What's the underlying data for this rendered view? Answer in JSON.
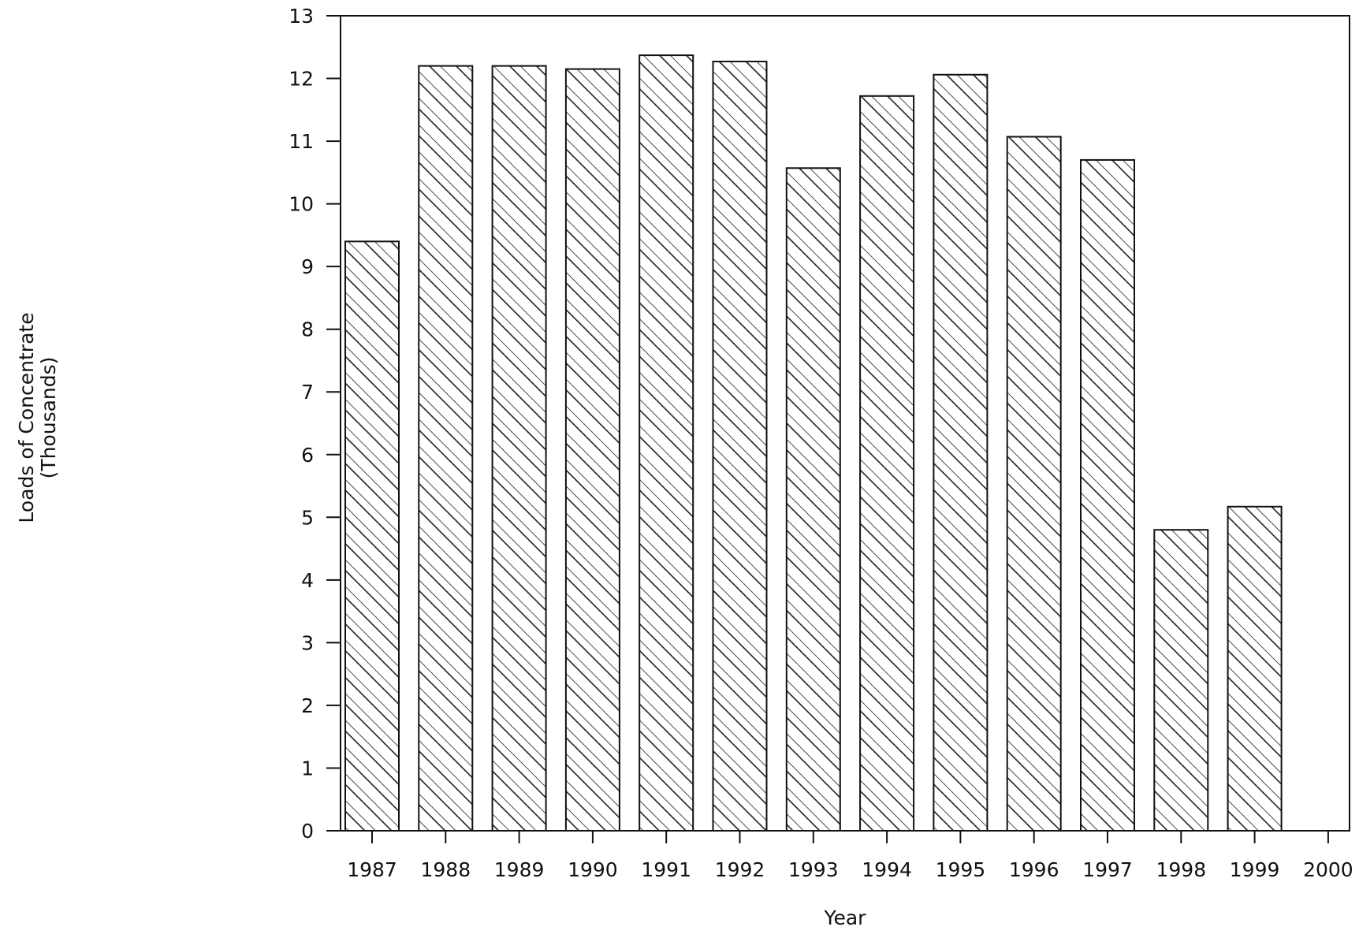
{
  "chart_data": {
    "type": "bar",
    "title": "",
    "xlabel": "Year",
    "ylabel": "Loads of Concentrate",
    "ylabel_sub": "(Thousands)",
    "categories": [
      "1987",
      "1988",
      "1989",
      "1990",
      "1991",
      "1992",
      "1993",
      "1994",
      "1995",
      "1996",
      "1997",
      "1998",
      "1999",
      "2000"
    ],
    "values": [
      9.4,
      12.2,
      12.2,
      12.15,
      12.37,
      12.27,
      10.57,
      11.72,
      12.06,
      11.07,
      10.7,
      4.8,
      5.17,
      0
    ],
    "ylim": [
      0,
      13
    ],
    "yticks": [
      0,
      1,
      2,
      3,
      4,
      5,
      6,
      7,
      8,
      9,
      10,
      11,
      12,
      13
    ],
    "grid": false,
    "legend": "none",
    "bar_fill": "hatched",
    "colors": {
      "line": "#111111",
      "background": "#ffffff"
    }
  }
}
